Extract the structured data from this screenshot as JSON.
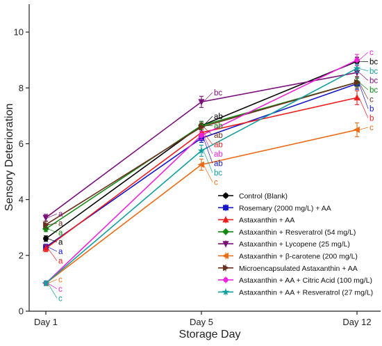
{
  "chart_data": {
    "type": "line",
    "xlabel": "Storage Day",
    "ylabel": "Sensory Deterioration",
    "categories": [
      "Day 1",
      "Day 5",
      "Day 12"
    ],
    "ylim": [
      0,
      11
    ],
    "yticks": [
      0,
      2,
      4,
      6,
      8,
      10
    ],
    "grid": false,
    "legend_position": "bottom-right",
    "series": [
      {
        "name": "Control (Blank)",
        "color": "#000000",
        "marker": "circle",
        "values": [
          2.6,
          6.65,
          8.95
        ],
        "errors": [
          0.1,
          0.15,
          0.15
        ],
        "letters": [
          "a",
          "ab",
          "bc"
        ]
      },
      {
        "name": "Rosemary (2000 mg/L) + AA",
        "color": "#1414c8",
        "marker": "square",
        "values": [
          2.3,
          6.2,
          8.15
        ],
        "errors": [
          0.1,
          0.15,
          0.2
        ],
        "letters": [
          "a",
          "ab",
          "b"
        ]
      },
      {
        "name": "Astaxanthin + AA",
        "color": "#ee1c1c",
        "marker": "triangle-up",
        "values": [
          2.25,
          6.4,
          7.65
        ],
        "errors": [
          0.12,
          0.15,
          0.25
        ],
        "letters": [
          "a",
          "ab",
          "b"
        ]
      },
      {
        "name": "Astaxanthin + Resveratrol (54 mg/L)",
        "color": "#118811",
        "marker": "diamond",
        "values": [
          2.95,
          6.65,
          8.2
        ],
        "errors": [
          0.1,
          0.15,
          0.15
        ],
        "letters": [
          "a",
          "ab",
          "bc"
        ]
      },
      {
        "name": "Astaxanthin + Lycopene (25 mg/L)",
        "color": "#7a0f7a",
        "marker": "triangle-down",
        "values": [
          3.35,
          7.5,
          8.55
        ],
        "errors": [
          0.12,
          0.2,
          0.15
        ],
        "letters": [
          "a",
          "bc",
          "bc"
        ]
      },
      {
        "name": "Astaxanthin + β-carotene (200 mg/L)",
        "color": "#ec6a12",
        "marker": "triangle-left",
        "values": [
          1.0,
          5.25,
          6.5
        ],
        "errors": [
          0.08,
          0.2,
          0.25
        ],
        "letters": [
          "c",
          "c",
          "c"
        ]
      },
      {
        "name": "Microencapsulated Astaxanthin + AA",
        "color": "#6b2f1e",
        "marker": "triangle-right",
        "values": [
          3.1,
          6.6,
          8.2
        ],
        "errors": [
          0.12,
          0.15,
          0.2
        ],
        "letters": [
          "a",
          "ab",
          "c"
        ]
      },
      {
        "name": "Astaxanthin + AA + Citric Acid (100 mg/L)",
        "color": "#ee22dd",
        "marker": "hexagon",
        "values": [
          1.0,
          6.3,
          9.0
        ],
        "errors": [
          0.08,
          0.15,
          0.2
        ],
        "letters": [
          "c",
          "ab",
          "c"
        ]
      },
      {
        "name": "Astaxanthin + AA + Resveratrol (27 mg/L)",
        "color": "#139e9e",
        "marker": "star",
        "values": [
          1.0,
          5.75,
          8.7
        ],
        "errors": [
          0.08,
          0.2,
          0.15
        ],
        "letters": [
          "c",
          "bc",
          "bc"
        ]
      }
    ]
  }
}
